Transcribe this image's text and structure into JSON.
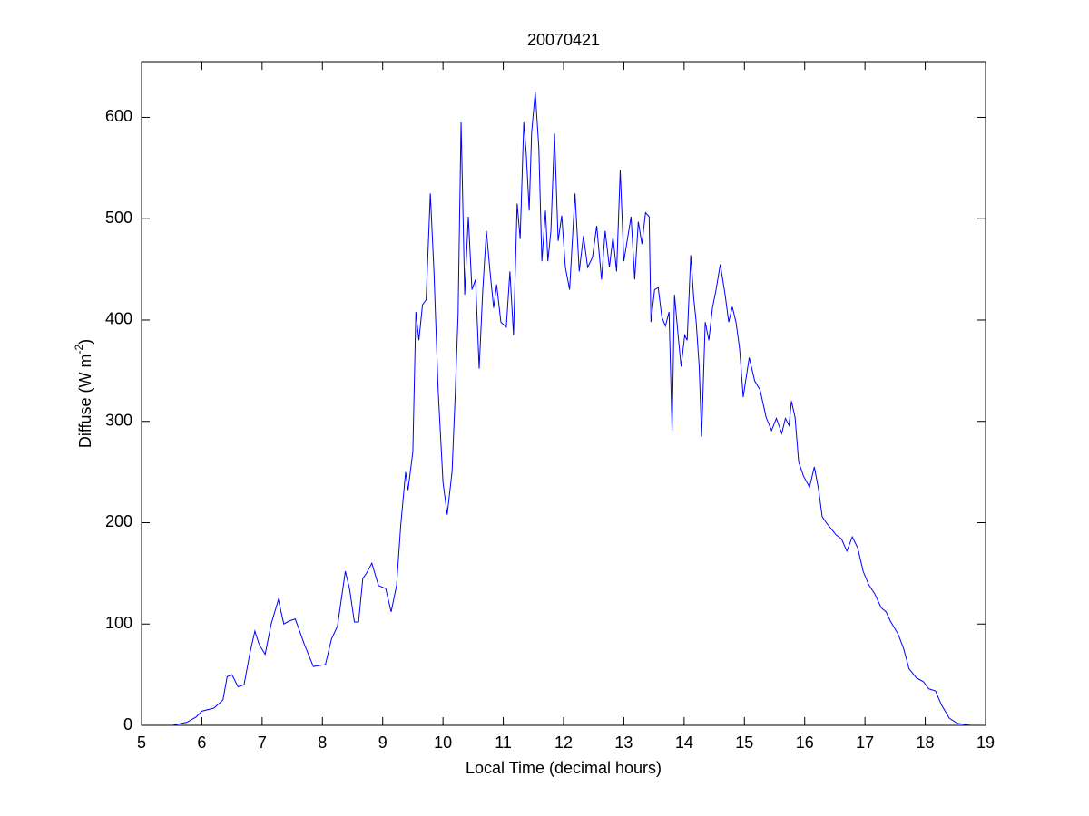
{
  "chart_data": {
    "type": "line",
    "title": "20070421",
    "xlabel": "Local Time (decimal hours)",
    "ylabel": {
      "text": "Diffuse (W m",
      "superscript": "-2",
      "close": ")"
    },
    "color": "#0000ff",
    "grid": false,
    "xlim": [
      5,
      19
    ],
    "xticks": [
      5,
      6,
      7,
      8,
      9,
      10,
      11,
      12,
      13,
      14,
      15,
      16,
      17,
      18,
      19
    ],
    "ylim": [
      0,
      655
    ],
    "yticks": [
      0,
      100,
      200,
      300,
      400,
      500,
      600
    ],
    "x": [
      5.51,
      5.75,
      5.9,
      6.0,
      6.2,
      6.35,
      6.42,
      6.5,
      6.6,
      6.7,
      6.8,
      6.88,
      6.95,
      7.05,
      7.15,
      7.27,
      7.36,
      7.45,
      7.55,
      7.7,
      7.85,
      8.05,
      8.15,
      8.25,
      8.38,
      8.45,
      8.53,
      8.6,
      8.67,
      8.73,
      8.82,
      8.93,
      9.05,
      9.14,
      9.23,
      9.3,
      9.38,
      9.42,
      9.5,
      9.55,
      9.6,
      9.66,
      9.72,
      9.79,
      9.85,
      9.92,
      10.0,
      10.07,
      10.15,
      10.2,
      10.25,
      10.3,
      10.36,
      10.42,
      10.48,
      10.54,
      10.6,
      10.66,
      10.72,
      10.78,
      10.84,
      10.89,
      10.96,
      11.05,
      11.11,
      11.17,
      11.23,
      11.28,
      11.34,
      11.38,
      11.43,
      11.47,
      11.53,
      11.59,
      11.64,
      11.7,
      11.74,
      11.79,
      11.85,
      11.91,
      11.97,
      12.03,
      12.1,
      12.19,
      12.26,
      12.33,
      12.4,
      12.48,
      12.55,
      12.63,
      12.69,
      12.76,
      12.82,
      12.88,
      12.94,
      13.0,
      13.06,
      13.12,
      13.18,
      13.24,
      13.3,
      13.36,
      13.42,
      13.45,
      13.51,
      13.57,
      13.63,
      13.69,
      13.75,
      13.8,
      13.84,
      13.9,
      13.95,
      14.01,
      14.05,
      14.11,
      14.16,
      14.2,
      14.25,
      14.29,
      14.35,
      14.41,
      14.47,
      14.53,
      14.6,
      14.68,
      14.74,
      14.8,
      14.86,
      14.92,
      14.98,
      15.08,
      15.17,
      15.26,
      15.36,
      15.45,
      15.53,
      15.62,
      15.68,
      15.74,
      15.78,
      15.84,
      15.9,
      15.98,
      16.08,
      16.16,
      16.23,
      16.29,
      16.37,
      16.44,
      16.52,
      16.61,
      16.7,
      16.79,
      16.88,
      16.97,
      17.06,
      17.16,
      17.27,
      17.35,
      17.42,
      17.55,
      17.64,
      17.73,
      17.85,
      17.97,
      18.06,
      18.17,
      18.27,
      18.4,
      18.53,
      18.76
    ],
    "values": [
      0,
      3,
      8,
      14,
      17,
      25,
      48,
      50,
      38,
      40,
      72,
      93,
      80,
      70,
      100,
      124,
      100,
      103,
      105,
      80,
      58,
      60,
      85,
      98,
      152,
      135,
      102,
      102,
      145,
      150,
      160,
      138,
      135,
      112,
      138,
      198,
      250,
      232,
      270,
      408,
      380,
      415,
      420,
      525,
      448,
      330,
      240,
      208,
      250,
      322,
      405,
      595,
      425,
      502,
      430,
      440,
      352,
      430,
      488,
      448,
      412,
      435,
      398,
      393,
      448,
      385,
      515,
      480,
      595,
      565,
      508,
      585,
      625,
      570,
      458,
      508,
      458,
      488,
      584,
      478,
      503,
      452,
      430,
      525,
      448,
      483,
      452,
      462,
      493,
      440,
      488,
      452,
      482,
      448,
      548,
      458,
      480,
      502,
      440,
      497,
      475,
      506,
      502,
      398,
      430,
      432,
      403,
      394,
      408,
      291,
      425,
      385,
      354,
      385,
      380,
      464,
      421,
      398,
      354,
      285,
      398,
      380,
      412,
      430,
      455,
      425,
      398,
      413,
      398,
      372,
      324,
      363,
      340,
      331,
      304,
      291,
      303,
      288,
      303,
      296,
      320,
      304,
      260,
      246,
      235,
      255,
      233,
      206,
      199,
      194,
      188,
      184,
      172,
      186,
      175,
      152,
      139,
      130,
      116,
      112,
      103,
      90,
      76,
      56,
      47,
      43,
      36,
      34,
      20,
      7,
      2,
      0
    ]
  }
}
